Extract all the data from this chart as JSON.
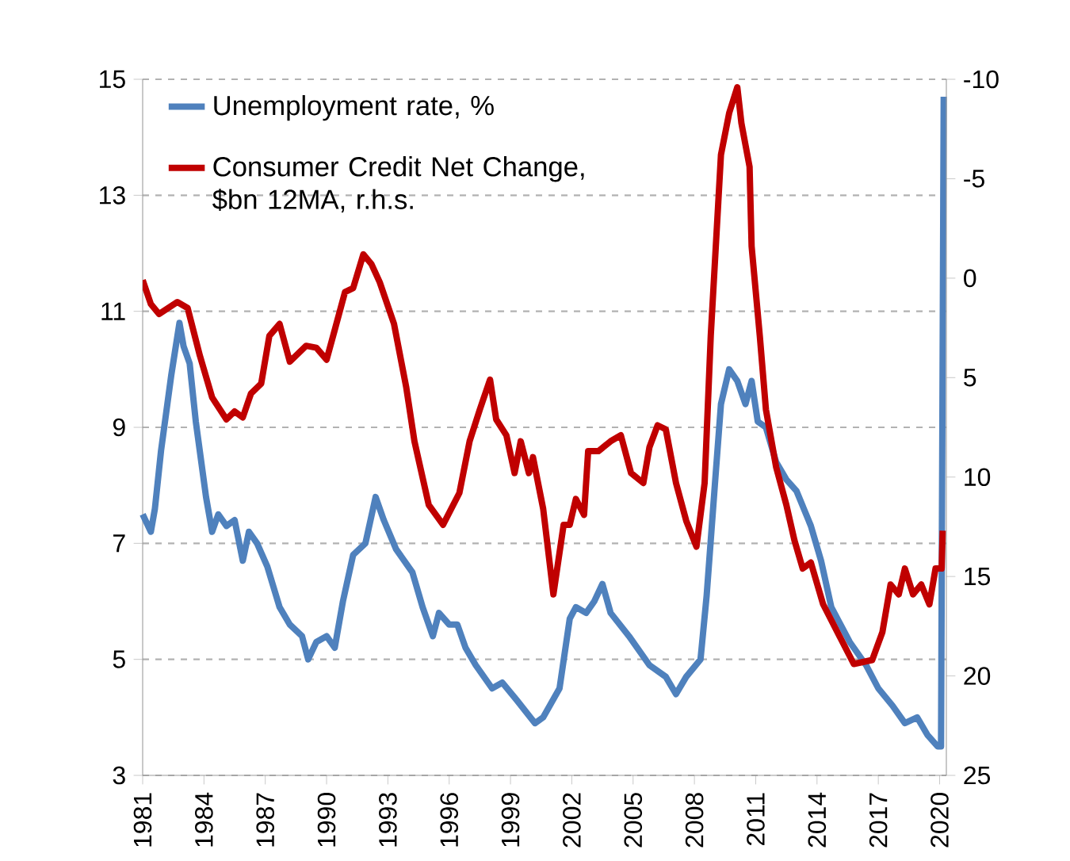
{
  "chart_data": {
    "type": "line",
    "xlim": [
      1981,
      2020.33
    ],
    "xticks": [
      1981,
      1984,
      1987,
      1990,
      1993,
      1996,
      1999,
      2002,
      2005,
      2008,
      2011,
      2014,
      2017,
      2020
    ],
    "ylim": [
      3,
      15
    ],
    "yticks": [
      3,
      5,
      7,
      9,
      11,
      13,
      15
    ],
    "y2lim": [
      25,
      -10
    ],
    "y2ticks": [
      -10,
      -5,
      0,
      5,
      10,
      15,
      20,
      25
    ],
    "grid": "y",
    "legend": "top left",
    "marker": "none",
    "line_style": "solid",
    "series": [
      {
        "name": "Unemployment rate, %",
        "color": "#4f81bd",
        "axis": "y",
        "x": [
          1981.0,
          1981.4,
          1981.6,
          1981.9,
          1982.4,
          1982.8,
          1983.0,
          1983.3,
          1983.6,
          1984.1,
          1984.4,
          1984.7,
          1985.1,
          1985.5,
          1985.9,
          1986.2,
          1986.6,
          1987.1,
          1987.7,
          1988.2,
          1988.8,
          1989.1,
          1989.5,
          1990.0,
          1990.4,
          1990.8,
          1991.3,
          1991.9,
          1992.4,
          1992.8,
          1993.4,
          1994.2,
          1994.7,
          1995.2,
          1995.5,
          1996.0,
          1996.4,
          1996.8,
          1997.3,
          1998.1,
          1998.6,
          1999.3,
          2000.2,
          2000.6,
          2001.4,
          2001.9,
          2002.2,
          2002.7,
          2003.1,
          2003.5,
          2003.9,
          2004.8,
          2005.8,
          2006.6,
          2007.1,
          2007.6,
          2008.3,
          2008.6,
          2009.0,
          2009.3,
          2009.7,
          2010.1,
          2010.5,
          2010.8,
          2011.1,
          2011.5,
          2012.0,
          2012.5,
          2013.0,
          2013.7,
          2014.2,
          2014.7,
          2015.6,
          2016.4,
          2017.0,
          2017.7,
          2018.3,
          2018.9,
          2019.4,
          2019.9,
          2020.07,
          2020.2
        ],
        "values": [
          7.5,
          7.2,
          7.6,
          8.6,
          9.9,
          10.8,
          10.4,
          10.1,
          9.1,
          7.8,
          7.2,
          7.5,
          7.3,
          7.4,
          6.7,
          7.2,
          7.0,
          6.6,
          5.9,
          5.6,
          5.4,
          5.0,
          5.3,
          5.4,
          5.2,
          6.0,
          6.8,
          7.0,
          7.8,
          7.4,
          6.9,
          6.5,
          5.9,
          5.4,
          5.8,
          5.6,
          5.6,
          5.2,
          4.9,
          4.5,
          4.6,
          4.3,
          3.9,
          4.0,
          4.5,
          5.7,
          5.9,
          5.8,
          6.0,
          6.3,
          5.8,
          5.4,
          4.9,
          4.7,
          4.4,
          4.7,
          5.0,
          6.1,
          8.0,
          9.4,
          10.0,
          9.8,
          9.4,
          9.8,
          9.1,
          9.0,
          8.4,
          8.1,
          7.9,
          7.3,
          6.7,
          5.9,
          5.3,
          4.9,
          4.5,
          4.2,
          3.9,
          4.0,
          3.7,
          3.5,
          3.5,
          14.7
        ]
      },
      {
        "name": "Consumer Credit Net Change, $bn 12MA, r.h.s.",
        "color": "#c00000",
        "axis": "y2",
        "x": [
          1981.0,
          1981.4,
          1981.8,
          1982.7,
          1983.2,
          1983.8,
          1984.4,
          1985.1,
          1985.5,
          1985.9,
          1986.3,
          1986.8,
          1987.2,
          1987.7,
          1988.2,
          1989.0,
          1989.5,
          1990.0,
          1990.4,
          1990.9,
          1991.3,
          1991.8,
          1992.2,
          1992.6,
          1993.3,
          1993.9,
          1994.3,
          1995.0,
          1995.7,
          1996.5,
          1997.0,
          1997.5,
          1998.0,
          1998.3,
          1998.8,
          1999.2,
          1999.5,
          1999.9,
          2000.1,
          2000.6,
          2001.1,
          2001.6,
          2001.9,
          2002.2,
          2002.6,
          2002.8,
          2003.3,
          2003.9,
          2004.4,
          2004.9,
          2005.5,
          2005.8,
          2006.2,
          2006.6,
          2007.1,
          2007.6,
          2008.1,
          2008.5,
          2008.8,
          2009.3,
          2009.7,
          2010.1,
          2010.3,
          2010.7,
          2010.8,
          2011.2,
          2011.5,
          2012.0,
          2012.5,
          2012.9,
          2013.3,
          2013.7,
          2014.3,
          2015.1,
          2015.8,
          2016.7,
          2017.2,
          2017.6,
          2018.0,
          2018.3,
          2018.7,
          2019.1,
          2019.5,
          2019.8,
          2020.1,
          2020.15
        ],
        "values": [
          0.1,
          1.3,
          1.8,
          1.2,
          1.5,
          3.9,
          6.0,
          7.1,
          6.7,
          7.0,
          5.8,
          5.3,
          2.9,
          2.3,
          4.2,
          3.4,
          3.5,
          4.1,
          2.6,
          0.7,
          0.5,
          -1.2,
          -0.7,
          0.2,
          2.3,
          5.5,
          8.2,
          11.4,
          12.4,
          10.8,
          8.2,
          6.6,
          5.1,
          7.1,
          7.9,
          9.8,
          8.2,
          9.8,
          9.0,
          11.6,
          15.9,
          12.4,
          12.4,
          11.1,
          11.9,
          8.7,
          8.7,
          8.2,
          7.9,
          9.8,
          10.3,
          8.5,
          7.4,
          7.6,
          10.3,
          12.2,
          13.5,
          10.3,
          2.9,
          -6.2,
          -8.3,
          -9.6,
          -7.8,
          -5.6,
          -1.6,
          2.9,
          6.6,
          9.5,
          11.4,
          13.2,
          14.6,
          14.3,
          16.4,
          18.0,
          19.4,
          19.2,
          17.8,
          15.4,
          15.9,
          14.6,
          15.9,
          15.4,
          16.4,
          14.6,
          14.6,
          12.7
        ]
      }
    ]
  }
}
